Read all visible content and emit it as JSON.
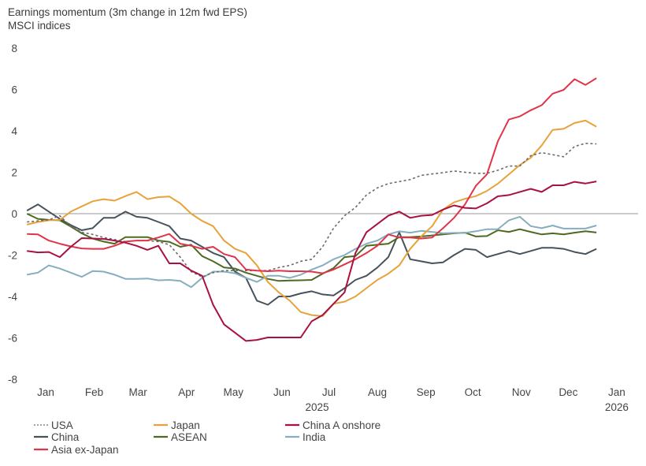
{
  "chart_data": {
    "type": "line",
    "title": "Earnings momentum (3m change in 12m fwd EPS)",
    "subtitle": "MSCI indices",
    "xlabel": "",
    "ylabel": "",
    "ylim": [
      -8,
      8
    ],
    "yticks": [
      8,
      6,
      4,
      2,
      0,
      -2,
      -4,
      -6,
      -8
    ],
    "xlim": [
      "2024-12-15",
      "2026-01-20"
    ],
    "xtick_labels": [
      {
        "date": "2025-01-01",
        "label": "Jan"
      },
      {
        "date": "2025-02-01",
        "label": "Feb"
      },
      {
        "date": "2025-03-01",
        "label": "Mar"
      },
      {
        "date": "2025-04-01",
        "label": "Apr"
      },
      {
        "date": "2025-05-01",
        "label": "May"
      },
      {
        "date": "2025-06-01",
        "label": "Jun"
      },
      {
        "date": "2025-07-01",
        "label": "Jul"
      },
      {
        "date": "2025-08-01",
        "label": "Aug"
      },
      {
        "date": "2025-09-01",
        "label": "Sep"
      },
      {
        "date": "2025-10-01",
        "label": "Oct"
      },
      {
        "date": "2025-11-01",
        "label": "Nov"
      },
      {
        "date": "2025-12-01",
        "label": "Dec"
      },
      {
        "date": "2026-01-01",
        "label": "Jan"
      }
    ],
    "year_labels": [
      {
        "date": "2025-07-01",
        "label": "2025"
      },
      {
        "date": "2026-01-01",
        "label": "2026"
      }
    ],
    "grid": false,
    "zero_line": true,
    "legend_placement": "bottom",
    "x": [
      "2024-12-20",
      "2024-12-27",
      "2025-01-03",
      "2025-01-10",
      "2025-01-17",
      "2025-01-24",
      "2025-01-31",
      "2025-02-07",
      "2025-02-14",
      "2025-02-21",
      "2025-02-28",
      "2025-03-07",
      "2025-03-14",
      "2025-03-21",
      "2025-03-28",
      "2025-04-04",
      "2025-04-11",
      "2025-04-18",
      "2025-04-25",
      "2025-05-02",
      "2025-05-09",
      "2025-05-16",
      "2025-05-23",
      "2025-05-30",
      "2025-06-06",
      "2025-06-13",
      "2025-06-20",
      "2025-06-27",
      "2025-07-04",
      "2025-07-11",
      "2025-07-18",
      "2025-07-25",
      "2025-08-01",
      "2025-08-08",
      "2025-08-15",
      "2025-08-22",
      "2025-08-29",
      "2025-09-05",
      "2025-09-12",
      "2025-09-19",
      "2025-09-26",
      "2025-10-03",
      "2025-10-10",
      "2025-10-17",
      "2025-10-24",
      "2025-10-31",
      "2025-11-07",
      "2025-11-14",
      "2025-11-21",
      "2025-11-28",
      "2025-12-05",
      "2025-12-12",
      "2025-12-19"
    ],
    "series": [
      {
        "name": "USA",
        "color": "#6b6b6b",
        "dash": true,
        "values": [
          -0.4,
          -0.35,
          -0.3,
          -0.1,
          -0.6,
          -0.9,
          -1.0,
          -1.15,
          -1.25,
          -1.35,
          -1.3,
          -1.3,
          -1.35,
          -1.5,
          -2.1,
          -2.8,
          -3.05,
          -2.85,
          -2.75,
          -2.75,
          -2.75,
          -2.75,
          -2.75,
          -2.6,
          -2.5,
          -2.3,
          -2.2,
          -1.6,
          -0.7,
          -0.1,
          0.3,
          0.9,
          1.25,
          1.45,
          1.55,
          1.65,
          1.85,
          1.92,
          1.98,
          2.06,
          2.0,
          1.95,
          1.95,
          2.1,
          2.3,
          2.3,
          2.8,
          2.95,
          2.85,
          2.75,
          3.25,
          3.4,
          3.37
        ]
      },
      {
        "name": "Japan",
        "color": "#e8a23a",
        "values": [
          -0.53,
          -0.4,
          -0.32,
          -0.3,
          0.1,
          0.35,
          0.6,
          0.7,
          0.63,
          0.85,
          1.05,
          0.7,
          0.8,
          0.83,
          0.5,
          0.0,
          -0.35,
          -0.6,
          -1.3,
          -1.7,
          -1.9,
          -2.5,
          -3.3,
          -3.8,
          -4.2,
          -4.75,
          -4.9,
          -4.95,
          -4.35,
          -4.25,
          -4.0,
          -3.6,
          -3.2,
          -2.9,
          -2.5,
          -1.7,
          -1.1,
          -0.6,
          0.2,
          0.55,
          0.72,
          0.85,
          1.1,
          1.45,
          1.9,
          2.35,
          2.7,
          3.3,
          4.05,
          4.1,
          4.38,
          4.5,
          4.2
        ]
      },
      {
        "name": "China A onshore",
        "color": "#a8123f",
        "values": [
          -1.8,
          -1.87,
          -1.85,
          -2.1,
          -1.6,
          -1.18,
          -1.2,
          -1.22,
          -1.3,
          -1.4,
          -1.55,
          -1.75,
          -1.55,
          -2.4,
          -2.4,
          -2.75,
          -3.0,
          -4.4,
          -5.35,
          -5.75,
          -6.15,
          -6.1,
          -5.98,
          -5.98,
          -5.98,
          -5.98,
          -5.2,
          -4.9,
          -4.35,
          -3.8,
          -1.9,
          -0.9,
          -0.5,
          -0.1,
          0.1,
          -0.2,
          -0.1,
          -0.06,
          0.2,
          0.4,
          0.28,
          0.25,
          0.5,
          0.84,
          0.9,
          1.05,
          1.2,
          1.05,
          1.37,
          1.37,
          1.54,
          1.46,
          1.56
        ]
      },
      {
        "name": "China",
        "color": "#47535c",
        "values": [
          0.15,
          0.45,
          0.1,
          -0.25,
          -0.55,
          -0.8,
          -0.7,
          -0.2,
          -0.2,
          0.1,
          -0.15,
          -0.2,
          -0.4,
          -0.6,
          -1.2,
          -1.3,
          -1.6,
          -1.9,
          -2.1,
          -2.8,
          -3.1,
          -4.2,
          -4.4,
          -4.0,
          -4.0,
          -3.85,
          -3.75,
          -3.9,
          -3.95,
          -3.6,
          -3.2,
          -3.0,
          -2.6,
          -2.1,
          -0.9,
          -2.2,
          -2.3,
          -2.4,
          -2.35,
          -2.0,
          -1.7,
          -1.75,
          -2.1,
          -1.95,
          -1.8,
          -1.95,
          -1.8,
          -1.65,
          -1.65,
          -1.7,
          -1.85,
          -1.95,
          -1.7
        ]
      },
      {
        "name": "ASEAN",
        "color": "#4d6a22",
        "values": [
          0.0,
          -0.25,
          -0.3,
          -0.32,
          -0.62,
          -0.95,
          -1.2,
          -1.35,
          -1.45,
          -1.13,
          -1.13,
          -1.13,
          -1.3,
          -1.36,
          -1.6,
          -1.5,
          -2.05,
          -2.3,
          -2.6,
          -2.65,
          -2.85,
          -3.0,
          -3.15,
          -3.25,
          -3.23,
          -3.22,
          -3.2,
          -2.9,
          -2.63,
          -2.1,
          -2.05,
          -1.55,
          -1.5,
          -1.45,
          -1.13,
          -1.13,
          -1.1,
          -1.05,
          -1.0,
          -0.95,
          -0.92,
          -1.1,
          -1.08,
          -0.8,
          -0.88,
          -0.75,
          -0.88,
          -1.0,
          -0.95,
          -1.0,
          -0.92,
          -0.85,
          -0.91
        ]
      },
      {
        "name": "India",
        "color": "#86aebf",
        "values": [
          -2.95,
          -2.85,
          -2.5,
          -2.65,
          -2.85,
          -3.05,
          -2.77,
          -2.8,
          -2.95,
          -3.15,
          -3.15,
          -3.13,
          -3.22,
          -3.2,
          -3.25,
          -3.55,
          -3.1,
          -2.8,
          -2.8,
          -2.88,
          -3.1,
          -3.3,
          -3.0,
          -3.0,
          -3.1,
          -2.95,
          -2.7,
          -2.5,
          -2.2,
          -2.0,
          -1.7,
          -1.45,
          -1.3,
          -1.0,
          -0.85,
          -0.92,
          -0.83,
          -0.88,
          -0.95,
          -0.93,
          -0.93,
          -0.85,
          -0.75,
          -0.75,
          -0.32,
          -0.15,
          -0.6,
          -0.7,
          -0.57,
          -0.72,
          -0.72,
          -0.72,
          -0.57
        ]
      },
      {
        "name": "Asia ex-Japan",
        "color": "#e0344a",
        "values": [
          -0.98,
          -1.0,
          -1.3,
          -1.45,
          -1.58,
          -1.68,
          -1.7,
          -1.7,
          -1.55,
          -1.35,
          -1.3,
          -1.3,
          -1.15,
          -0.98,
          -1.45,
          -1.55,
          -1.7,
          -1.6,
          -1.95,
          -2.1,
          -2.7,
          -2.75,
          -2.78,
          -2.75,
          -2.78,
          -2.78,
          -2.8,
          -2.88,
          -2.7,
          -2.45,
          -2.2,
          -1.9,
          -1.55,
          -1.0,
          -1.15,
          -1.15,
          -1.2,
          -1.15,
          -0.7,
          -0.2,
          0.45,
          1.35,
          1.9,
          3.5,
          4.55,
          4.7,
          5.0,
          5.24,
          5.8,
          5.98,
          6.5,
          6.22,
          6.55
        ]
      }
    ]
  }
}
